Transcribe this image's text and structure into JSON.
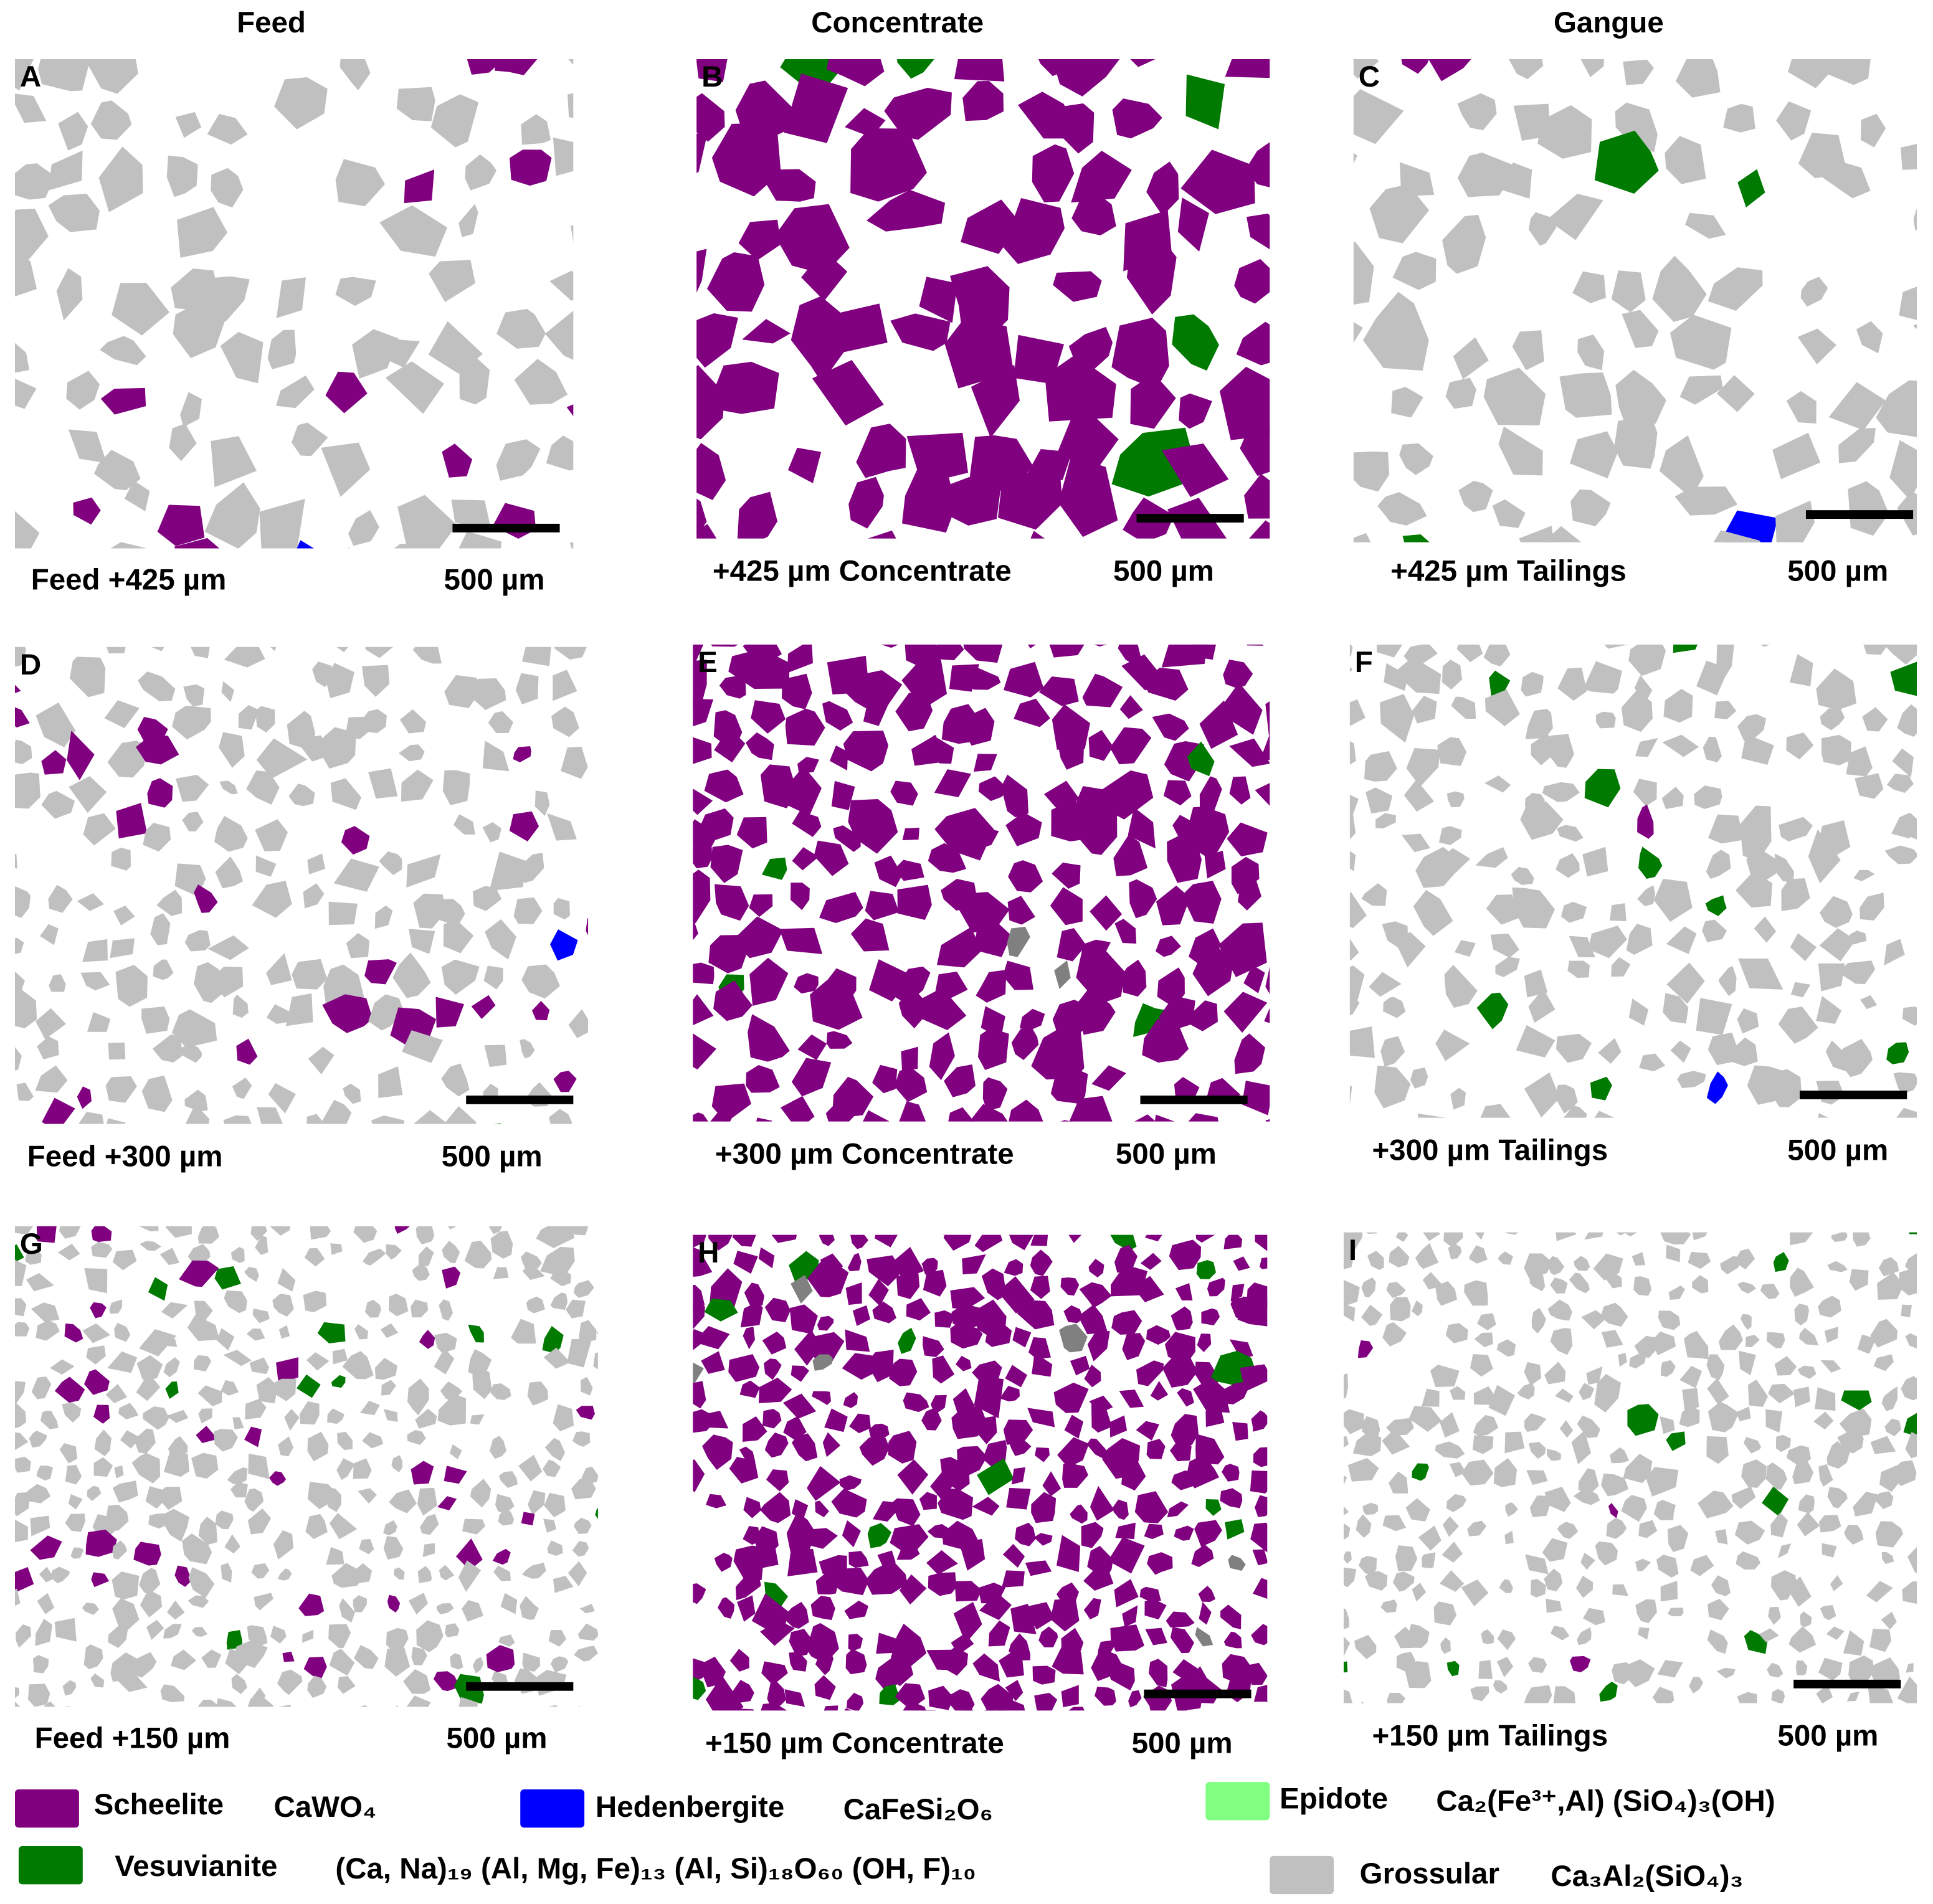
{
  "columns": [
    "Feed",
    "Concentrate",
    "Gangue"
  ],
  "panels": [
    {
      "letter": "A",
      "caption": "Feed +425 µm",
      "scale": "500 µm"
    },
    {
      "letter": "B",
      "caption": "+425 µm Concentrate",
      "scale": "500 µm"
    },
    {
      "letter": "C",
      "caption": "+425 µm Tailings",
      "scale": "500 µm"
    },
    {
      "letter": "D",
      "caption": "Feed +300 µm",
      "scale": "500 µm"
    },
    {
      "letter": "E",
      "caption": "+300 µm Concentrate",
      "scale": "500 µm"
    },
    {
      "letter": "F",
      "caption": "+300 µm Tailings",
      "scale": "500 µm"
    },
    {
      "letter": "G",
      "caption": "Feed +150 µm",
      "scale": "500 µm"
    },
    {
      "letter": "H",
      "caption": "+150 µm Concentrate",
      "scale": "500 µm"
    },
    {
      "letter": "I",
      "caption": "+150 µm Tailings",
      "scale": "500 µm"
    }
  ],
  "legend": [
    {
      "name": "Scheelite",
      "formula": "CaWO₄",
      "color": "#800080"
    },
    {
      "name": "Hedenbergite",
      "formula": "CaFeSi₂O₆",
      "color": "#0000ff"
    },
    {
      "name": "Epidote",
      "formula": "Ca₂(Fe³⁺,Al) (SiO₄)₃(OH)",
      "color": "#80ff80"
    },
    {
      "name": "Vesuvianite",
      "formula": "(Ca, Na)₁₉ (Al, Mg, Fe)₁₃ (Al, Si)₁₈O₆₀ (OH, F)₁₀",
      "color": "#007a00"
    },
    {
      "name": "Grossular",
      "formula": "Ca₃Al₂(SiO₄)₃",
      "color": "#c0c0c0"
    }
  ]
}
